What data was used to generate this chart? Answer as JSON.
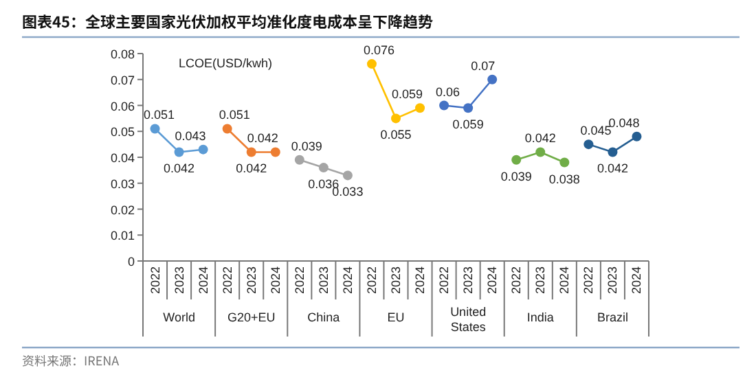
{
  "chart_data": {
    "type": "line",
    "title": "图表45：全球主要国家光伏加权平均准化度电成本呈下降趋势",
    "ylabel": "LCOE(USD/kwh)",
    "annotations": [
      "World",
      "G20+EU",
      "China",
      "EU",
      "United States",
      "India",
      "Brazil",
      "资料来源：IRENA"
    ],
    "categories": [
      "2022",
      "2023",
      "2024",
      "2022",
      "2023",
      "2024",
      "2022",
      "2023",
      "2024",
      "2022",
      "2023",
      "2024",
      "2022",
      "2023",
      "2024",
      "2022",
      "2023",
      "2024",
      "2022",
      "2023",
      "2024"
    ],
    "series": [
      {
        "color": "#5b9bd5",
        "values": [
          0.051,
          0.042,
          0.043,
          null,
          null,
          null,
          null,
          null,
          null,
          null,
          null,
          null,
          null,
          null,
          null,
          null,
          null,
          null,
          null,
          null,
          null
        ]
      },
      {
        "color": "#ed7d31",
        "values": [
          null,
          null,
          null,
          0.051,
          0.042,
          0.042,
          null,
          null,
          null,
          null,
          null,
          null,
          null,
          null,
          null,
          null,
          null,
          null,
          null,
          null,
          null
        ]
      },
      {
        "color": "#a5a5a5",
        "values": [
          null,
          null,
          null,
          null,
          null,
          null,
          0.039,
          0.036,
          0.033,
          null,
          null,
          null,
          null,
          null,
          null,
          null,
          null,
          null,
          null,
          null,
          null
        ]
      },
      {
        "color": "#ffc000",
        "values": [
          null,
          null,
          null,
          null,
          null,
          null,
          null,
          null,
          null,
          0.076,
          0.055,
          0.059,
          null,
          null,
          null,
          null,
          null,
          null,
          null,
          null,
          null
        ]
      },
      {
        "color": "#4472c4",
        "values": [
          null,
          null,
          null,
          null,
          null,
          null,
          null,
          null,
          null,
          null,
          null,
          null,
          0.06,
          0.059,
          0.07,
          null,
          null,
          null,
          null,
          null,
          null
        ]
      },
      {
        "color": "#70ad47",
        "values": [
          null,
          null,
          null,
          null,
          null,
          null,
          null,
          null,
          null,
          null,
          null,
          null,
          null,
          null,
          null,
          0.039,
          0.042,
          0.038,
          null,
          null,
          null
        ]
      },
      {
        "color": "#255e91",
        "values": [
          null,
          null,
          null,
          null,
          null,
          null,
          null,
          null,
          null,
          null,
          null,
          null,
          null,
          null,
          null,
          null,
          null,
          null,
          0.045,
          0.042,
          0.048
        ]
      }
    ],
    "ylim": [
      0,
      0.08
    ],
    "yticks": [
      0,
      0.01,
      0.02,
      0.03,
      0.04,
      0.05,
      0.06,
      0.07,
      0.08
    ],
    "data_labels": true,
    "marker": "circle",
    "grid": false
  }
}
